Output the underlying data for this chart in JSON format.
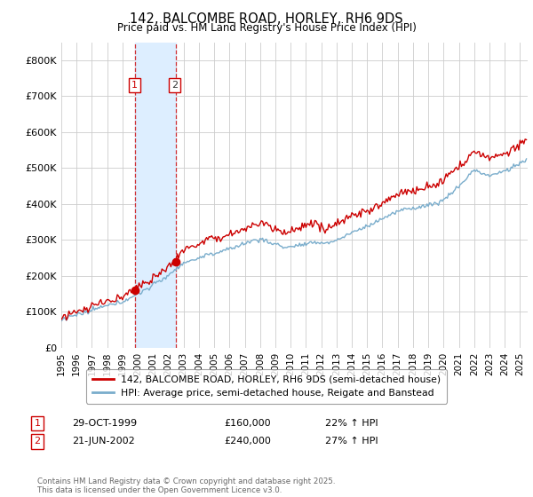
{
  "title": "142, BALCOMBE ROAD, HORLEY, RH6 9DS",
  "subtitle": "Price paid vs. HM Land Registry's House Price Index (HPI)",
  "red_label": "142, BALCOMBE ROAD, HORLEY, RH6 9DS (semi-detached house)",
  "blue_label": "HPI: Average price, semi-detached house, Reigate and Banstead",
  "footnote": "Contains HM Land Registry data © Crown copyright and database right 2025.\nThis data is licensed under the Open Government Licence v3.0.",
  "transactions": [
    {
      "num": "1",
      "date": "29-OCT-1999",
      "price": "£160,000",
      "hpi": "22% ↑ HPI"
    },
    {
      "num": "2",
      "date": "21-JUN-2002",
      "price": "£240,000",
      "hpi": "27% ↑ HPI"
    }
  ],
  "ylim": [
    0,
    850000
  ],
  "yticks": [
    0,
    100000,
    200000,
    300000,
    400000,
    500000,
    600000,
    700000,
    800000
  ],
  "ytick_labels": [
    "£0",
    "£100K",
    "£200K",
    "£300K",
    "£400K",
    "£500K",
    "£600K",
    "£700K",
    "£800K"
  ],
  "background_color": "#ffffff",
  "grid_color": "#cccccc",
  "red_color": "#cc0000",
  "blue_color": "#7aadcc",
  "highlight_color": "#ddeeff",
  "transaction1_x": 1999.83,
  "transaction2_x": 2002.47,
  "xlim_left": 1995.0,
  "xlim_right": 2025.5
}
